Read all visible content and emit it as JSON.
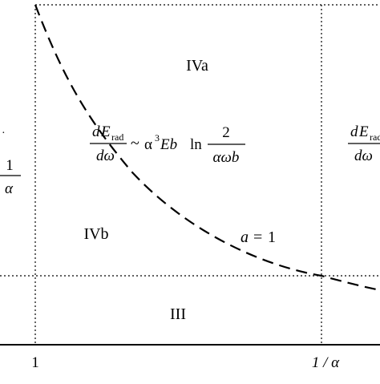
{
  "regions": {
    "iva": "IVa",
    "ivb": "IVb",
    "iii": "III"
  },
  "curve_label": {
    "var": "a",
    "op": "=",
    "value": "1"
  },
  "formula": {
    "num_d": "d",
    "num_E": "E",
    "num_sub": "rad",
    "den": "dω",
    "tilde": "~",
    "alpha": "α",
    "cube": "3",
    "Eb": "Eb",
    "ln": "ln",
    "frac_num": "2",
    "frac_den": "αωb"
  },
  "left_edge_fraction": {
    "num": "1",
    "den": "α"
  },
  "x_ticks": {
    "one": "1",
    "inv_alpha": "1 / α"
  },
  "colors": {
    "ink": "#000000",
    "background": "#ffffff"
  }
}
